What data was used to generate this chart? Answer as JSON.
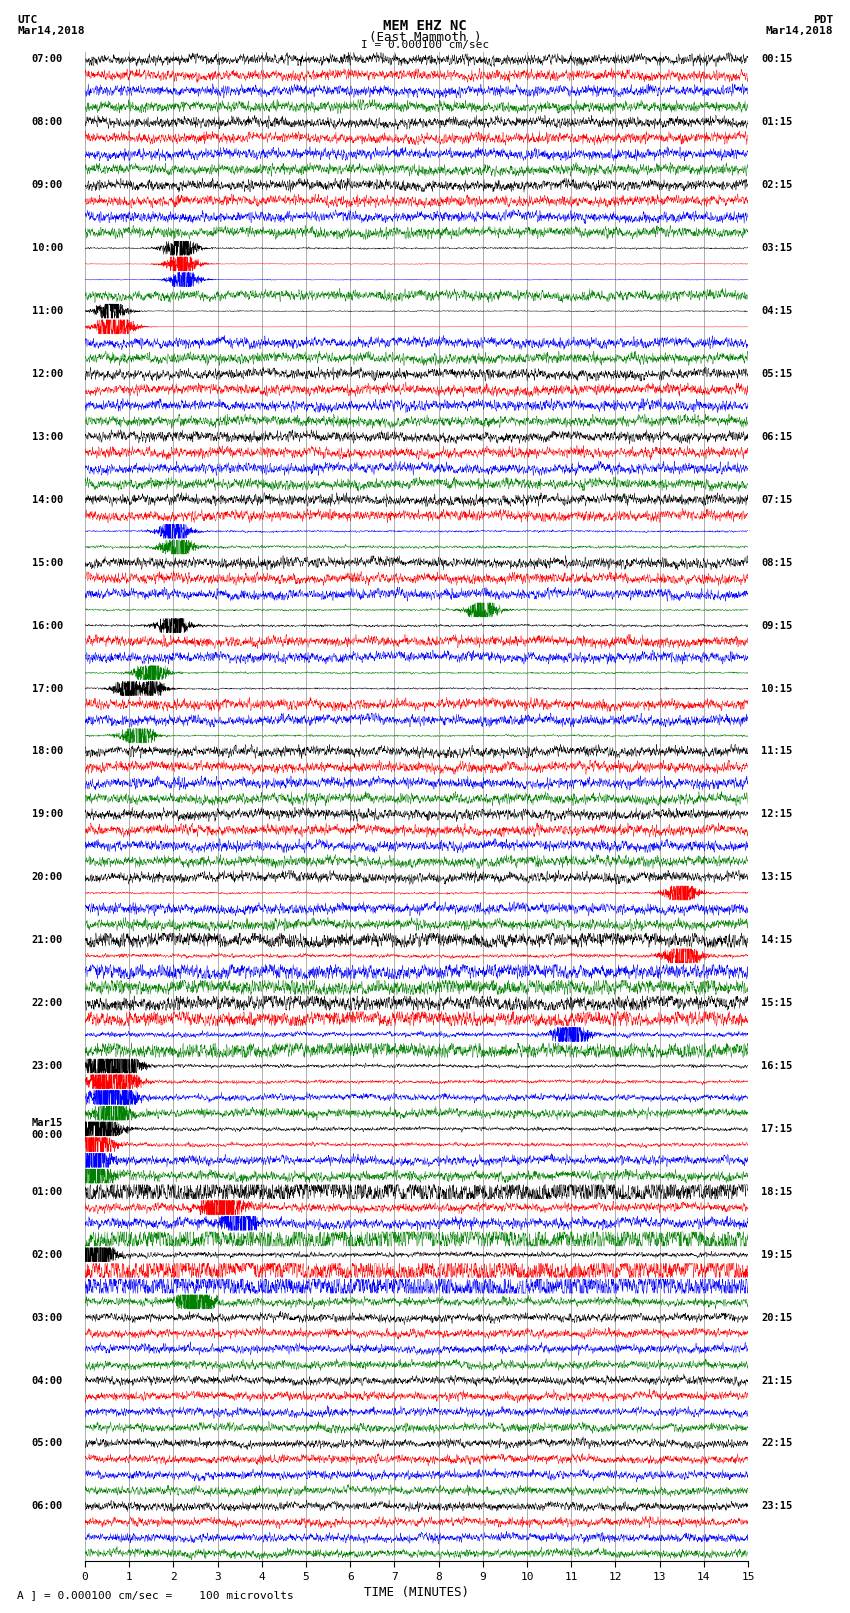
{
  "title_line1": "MEM EHZ NC",
  "title_line2": "(East Mammoth )",
  "scale_label": "I = 0.000100 cm/sec",
  "footer_label": "A ] = 0.000100 cm/sec =    100 microvolts",
  "xlabel": "TIME (MINUTES)",
  "xlim": [
    0,
    15
  ],
  "xticks": [
    0,
    1,
    2,
    3,
    4,
    5,
    6,
    7,
    8,
    9,
    10,
    11,
    12,
    13,
    14,
    15
  ],
  "left_times": [
    "07:00",
    "08:00",
    "09:00",
    "10:00",
    "11:00",
    "12:00",
    "13:00",
    "14:00",
    "15:00",
    "16:00",
    "17:00",
    "18:00",
    "19:00",
    "20:00",
    "21:00",
    "22:00",
    "23:00",
    "Mar15\n00:00",
    "01:00",
    "02:00",
    "03:00",
    "04:00",
    "05:00",
    "06:00"
  ],
  "right_times": [
    "00:15",
    "01:15",
    "02:15",
    "03:15",
    "04:15",
    "05:15",
    "06:15",
    "07:15",
    "08:15",
    "09:15",
    "10:15",
    "11:15",
    "12:15",
    "13:15",
    "14:15",
    "15:15",
    "16:15",
    "17:15",
    "18:15",
    "19:15",
    "20:15",
    "21:15",
    "22:15",
    "23:15"
  ],
  "trace_colors": [
    "black",
    "red",
    "blue",
    "green"
  ],
  "n_groups": 24,
  "traces_per_group": 4,
  "bg_color": "white",
  "vgrid_color": "#888888",
  "vgrid_alpha": 0.8,
  "vgrid_minutes": [
    0,
    1,
    2,
    3,
    4,
    5,
    6,
    7,
    8,
    9,
    10,
    11,
    12,
    13,
    14,
    15
  ]
}
